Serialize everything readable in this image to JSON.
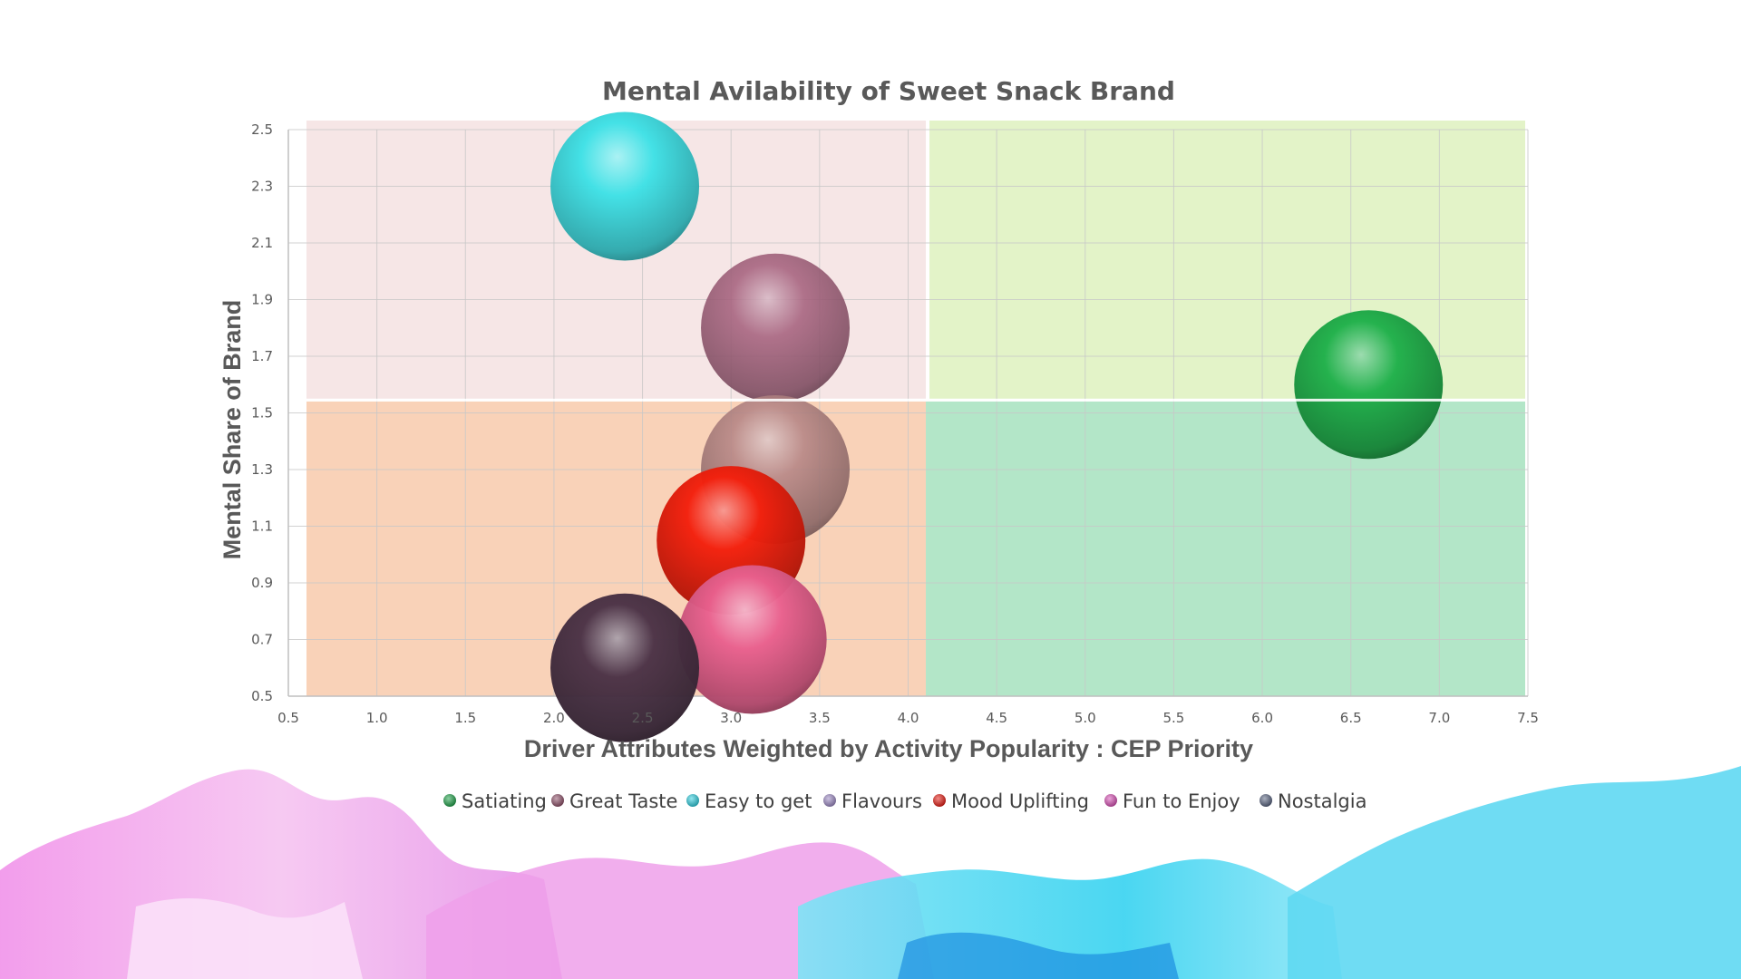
{
  "chart_data": {
    "type": "bubble",
    "title": "Mental Avilability of Sweet Snack Brand",
    "xlabel": "Driver Attributes Weighted by Activity Popularity : CEP Priority",
    "ylabel": "Mental Share of Brand",
    "xlim": [
      0.5,
      7.5
    ],
    "ylim": [
      0.5,
      2.5
    ],
    "x_ticks": [
      "0.5",
      "1.0",
      "1.5",
      "2.0",
      "2.5",
      "3.0",
      "3.5",
      "4.0",
      "4.5",
      "5.0",
      "5.5",
      "6.0",
      "6.5",
      "7.0",
      "7.5"
    ],
    "y_ticks": [
      "0.5",
      "0.7",
      "0.9",
      "1.1",
      "1.3",
      "1.5",
      "1.7",
      "1.9",
      "2.1",
      "2.3",
      "2.5"
    ],
    "grid": true,
    "legend_position": "bottom",
    "quadrant_split": {
      "x": 4.1,
      "y": 1.55
    },
    "quadrant_colors": {
      "top_left": "#f6e6e6",
      "top_right": "#e3f3c8",
      "bottom_left": "#f9d2b8",
      "bottom_right": "#b3e6c8"
    },
    "series": [
      {
        "name": "Satiating",
        "x": 6.6,
        "y": 1.6,
        "color": "#1fb04a",
        "dot_color": "#17a043"
      },
      {
        "name": "Great Taste",
        "x": 3.25,
        "y": 1.8,
        "color": "#a6627e",
        "dot_color": "#8c4a64"
      },
      {
        "name": "Easy to get",
        "x": 2.4,
        "y": 2.3,
        "color": "#3ee1e6",
        "dot_color": "#26cfe0"
      },
      {
        "name": "Flavours",
        "x": 3.25,
        "y": 1.3,
        "color": "#b58585",
        "dot_color": "#9a86c4"
      },
      {
        "name": "Mood Uplifting",
        "x": 3.0,
        "y": 1.05,
        "color": "#f31f0c",
        "dot_color": "#e8140b"
      },
      {
        "name": "Fun to Enjoy",
        "x": 3.12,
        "y": 0.7,
        "color": "#e9608e",
        "dot_color": "#d94ab4"
      },
      {
        "name": "Nostalgia",
        "x": 2.4,
        "y": 0.6,
        "color": "#4b3246",
        "dot_color": "#55607e"
      }
    ]
  }
}
